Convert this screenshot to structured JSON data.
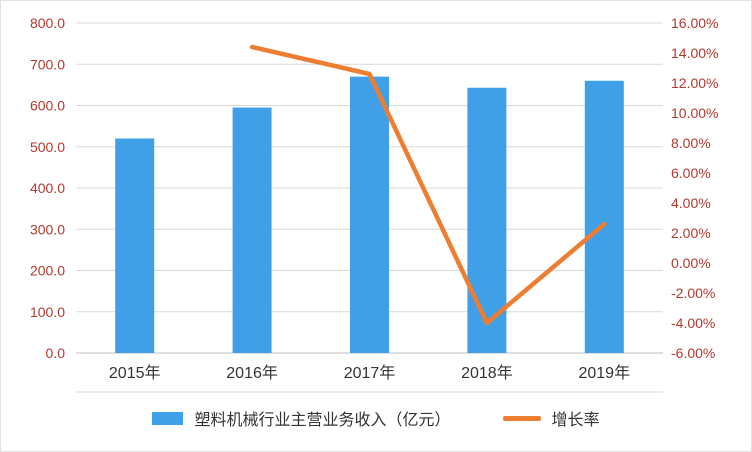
{
  "chart_data": {
    "type": "bar",
    "combo": "bar+line",
    "categories": [
      "2015年",
      "2016年",
      "2017年",
      "2018年",
      "2019年"
    ],
    "series": [
      {
        "name": "塑料机械行业主营业务收入（亿元）",
        "type": "bar",
        "axis": "left",
        "values": [
          520,
          595,
          670,
          643,
          660
        ]
      },
      {
        "name": "增长率",
        "type": "line",
        "axis": "right",
        "values": [
          null,
          14.4,
          12.6,
          -4.0,
          2.6
        ],
        "unit": "%"
      }
    ],
    "left_axis": {
      "min": 0,
      "max": 800,
      "step": 100,
      "ticks": [
        "0.0",
        "100.0",
        "200.0",
        "300.0",
        "400.0",
        "500.0",
        "600.0",
        "700.0",
        "800.0"
      ]
    },
    "right_axis": {
      "min": -6,
      "max": 16,
      "step": 2,
      "ticks": [
        "-6.00%",
        "-4.00%",
        "-2.00%",
        "0.00%",
        "2.00%",
        "4.00%",
        "6.00%",
        "8.00%",
        "10.00%",
        "12.00%",
        "14.00%",
        "16.00%"
      ]
    },
    "legend": [
      {
        "label": "塑料机械行业主营业务收入（亿元）",
        "swatch": "bar"
      },
      {
        "label": "增长率",
        "swatch": "line"
      }
    ],
    "legend_position": "bottom",
    "grid": true,
    "colors": {
      "bar": "#3FA0E8",
      "line": "#ED7D31",
      "gridline": "#D9D9D9",
      "axis_line": "#BFBFBF",
      "tick_label": "#B03A30",
      "x_label": "#333333",
      "legend_label": "#333333",
      "background": "#FFFFFF"
    }
  }
}
